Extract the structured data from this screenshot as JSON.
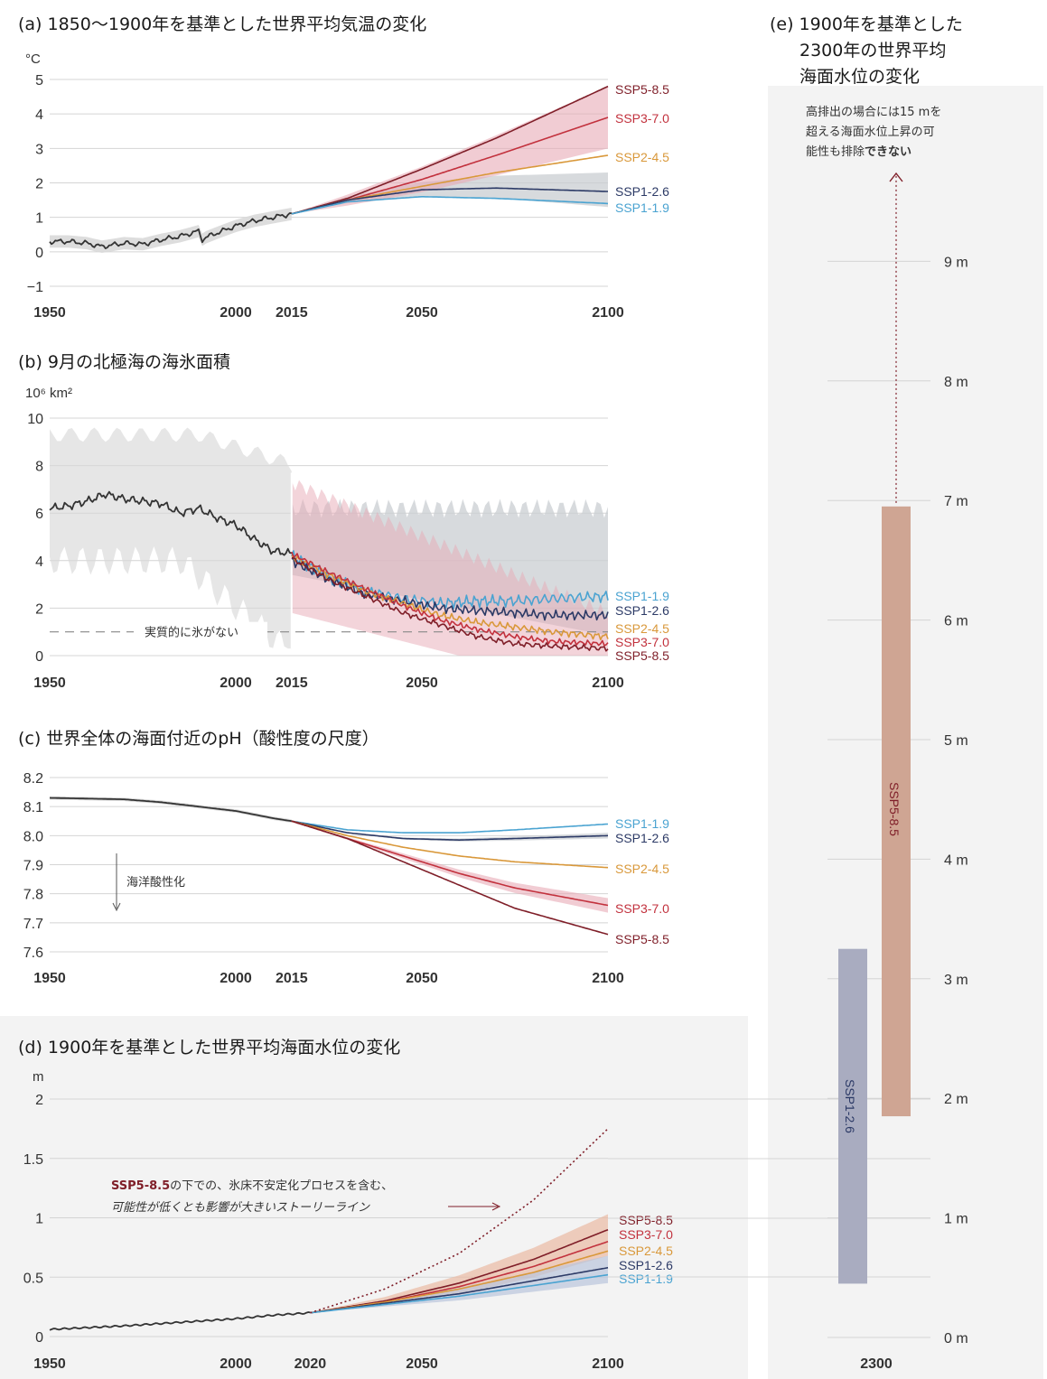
{
  "colors": {
    "hist": "#333333",
    "ssp119": "#4aa3d1",
    "ssp126": "#2c3a66",
    "ssp245": "#d9983a",
    "ssp370": "#c2313d",
    "ssp585": "#7f1e28",
    "band_red": "#e8aab5",
    "band_gray": "#c9cdd2",
    "hist_band": "#d9d9d9",
    "panel_bg": "#f3f3f3",
    "bar585": "#cfa593",
    "bar126": "#a9acc0"
  },
  "chart_data": [
    {
      "id": "a",
      "type": "line",
      "title": "(a) 1850〜1900年を基準とした世界平均気温の変化",
      "ylabel": "°C",
      "ylim": [
        -1,
        5
      ],
      "yticks": [
        "−1",
        "0",
        "1",
        "2",
        "3",
        "4",
        "5"
      ],
      "xticks": [
        "1950",
        "2000",
        "2015",
        "2050",
        "2100"
      ],
      "series": [
        {
          "name": "Historical",
          "x": [
            1950,
            1955,
            1960,
            1964,
            1970,
            1975,
            1980,
            1985,
            1990,
            1991,
            1992,
            1995,
            2000,
            2005,
            2010,
            2015
          ],
          "y": [
            0.3,
            0.3,
            0.25,
            0.15,
            0.25,
            0.22,
            0.35,
            0.45,
            0.6,
            0.35,
            0.42,
            0.55,
            0.75,
            0.9,
            1.0,
            1.1
          ]
        },
        {
          "name": "SSP5-8.5",
          "x": [
            2015,
            2030,
            2050,
            2070,
            2100
          ],
          "y": [
            1.1,
            1.55,
            2.4,
            3.3,
            4.8
          ]
        },
        {
          "name": "SSP3-7.0",
          "x": [
            2015,
            2030,
            2050,
            2070,
            2100
          ],
          "y": [
            1.1,
            1.5,
            2.1,
            2.8,
            3.9
          ]
        },
        {
          "name": "SSP2-4.5",
          "x": [
            2015,
            2030,
            2050,
            2070,
            2100
          ],
          "y": [
            1.1,
            1.5,
            1.9,
            2.3,
            2.8
          ]
        },
        {
          "name": "SSP1-2.6",
          "x": [
            2015,
            2030,
            2050,
            2070,
            2100
          ],
          "y": [
            1.1,
            1.5,
            1.8,
            1.85,
            1.75
          ]
        },
        {
          "name": "SSP1-1.9",
          "x": [
            2015,
            2030,
            2050,
            2070,
            2100
          ],
          "y": [
            1.1,
            1.45,
            1.6,
            1.55,
            1.4
          ]
        }
      ]
    },
    {
      "id": "b",
      "type": "line",
      "title": "(b) 9月の北極海の海氷面積",
      "ylabel": "10⁶ km²",
      "ylim": [
        0,
        10
      ],
      "yticks": [
        "0",
        "2",
        "4",
        "6",
        "8",
        "10"
      ],
      "xticks": [
        "1950",
        "2000",
        "2015",
        "2050",
        "2100"
      ],
      "annotation": "実質的に氷がない",
      "threshold": 1,
      "series": [
        {
          "name": "Historical",
          "x": [
            1950,
            1955,
            1960,
            1965,
            1970,
            1975,
            1980,
            1985,
            1990,
            1995,
            2000,
            2005,
            2010,
            2015
          ],
          "y": [
            6.2,
            6.3,
            6.5,
            6.8,
            6.6,
            6.5,
            6.4,
            6.0,
            6.2,
            5.8,
            5.5,
            4.9,
            4.4,
            4.3
          ]
        },
        {
          "name": "SSP1-1.9",
          "x": [
            2015,
            2025,
            2035,
            2045,
            2055,
            2065,
            2075,
            2085,
            2100
          ],
          "y": [
            4.2,
            3.3,
            2.7,
            2.4,
            2.2,
            2.3,
            2.3,
            2.4,
            2.5
          ]
        },
        {
          "name": "SSP1-2.6",
          "x": [
            2015,
            2025,
            2035,
            2045,
            2055,
            2065,
            2075,
            2085,
            2100
          ],
          "y": [
            4.0,
            3.2,
            2.6,
            2.3,
            2.0,
            1.9,
            1.8,
            1.7,
            1.7
          ]
        },
        {
          "name": "SSP2-4.5",
          "x": [
            2015,
            2025,
            2035,
            2045,
            2055,
            2065,
            2075,
            2085,
            2100
          ],
          "y": [
            4.2,
            3.4,
            2.7,
            2.2,
            1.7,
            1.4,
            1.2,
            1.0,
            0.8
          ]
        },
        {
          "name": "SSP3-7.0",
          "x": [
            2015,
            2025,
            2035,
            2045,
            2055,
            2065,
            2075,
            2085,
            2100
          ],
          "y": [
            4.3,
            3.5,
            2.8,
            2.1,
            1.5,
            1.1,
            0.8,
            0.6,
            0.5
          ]
        },
        {
          "name": "SSP5-8.5",
          "x": [
            2015,
            2025,
            2035,
            2045,
            2055,
            2065,
            2075,
            2085,
            2100
          ],
          "y": [
            4.1,
            3.2,
            2.5,
            1.8,
            1.3,
            0.8,
            0.5,
            0.4,
            0.3
          ]
        }
      ]
    },
    {
      "id": "c",
      "type": "line",
      "title": "(c) 世界全体の海面付近のpH（酸性度の尺度）",
      "ylim": [
        7.6,
        8.2
      ],
      "yticks": [
        "7.6",
        "7.7",
        "7.8",
        "7.9",
        "8.0",
        "8.1",
        "8.2"
      ],
      "xticks": [
        "1950",
        "2000",
        "2015",
        "2050",
        "2100"
      ],
      "annotation": "海洋酸性化",
      "series": [
        {
          "name": "Historical",
          "x": [
            1950,
            1970,
            1980,
            1990,
            2000,
            2010,
            2015
          ],
          "y": [
            8.13,
            8.125,
            8.115,
            8.1,
            8.085,
            8.06,
            8.05
          ]
        },
        {
          "name": "SSP1-1.9",
          "x": [
            2015,
            2030,
            2045,
            2060,
            2075,
            2100
          ],
          "y": [
            8.05,
            8.02,
            8.01,
            8.01,
            8.02,
            8.04
          ]
        },
        {
          "name": "SSP1-2.6",
          "x": [
            2015,
            2030,
            2045,
            2060,
            2075,
            2100
          ],
          "y": [
            8.05,
            8.01,
            7.99,
            7.985,
            7.99,
            8.0
          ]
        },
        {
          "name": "SSP2-4.5",
          "x": [
            2015,
            2030,
            2045,
            2060,
            2075,
            2100
          ],
          "y": [
            8.05,
            8.0,
            7.96,
            7.93,
            7.91,
            7.89
          ]
        },
        {
          "name": "SSP3-7.0",
          "x": [
            2015,
            2030,
            2045,
            2060,
            2075,
            2100
          ],
          "y": [
            8.05,
            7.99,
            7.93,
            7.87,
            7.82,
            7.76
          ]
        },
        {
          "name": "SSP5-8.5",
          "x": [
            2015,
            2030,
            2045,
            2060,
            2075,
            2100
          ],
          "y": [
            8.05,
            7.99,
            7.91,
            7.83,
            7.75,
            7.66
          ]
        }
      ]
    },
    {
      "id": "d",
      "type": "line",
      "title": "(d) 1900年を基準とした世界平均海面水位の変化",
      "ylabel": "m",
      "ylim": [
        0,
        2
      ],
      "yticks": [
        "0",
        "0.5",
        "1",
        "1.5",
        "2"
      ],
      "xticks": [
        "1950",
        "2000",
        "2020",
        "2050",
        "2100"
      ],
      "annotation_bold": "SSP5-8.5",
      "annotation_rest": "の下での、氷床不安定化プロセスを含む、",
      "annotation_line2": "可能性が低くとも影響が大きいストーリーライン",
      "series": [
        {
          "name": "Historical",
          "x": [
            1950,
            1960,
            1970,
            1980,
            1990,
            2000,
            2010,
            2020
          ],
          "y": [
            0.06,
            0.075,
            0.09,
            0.11,
            0.13,
            0.15,
            0.18,
            0.2
          ]
        },
        {
          "name": "SSP5-8.5",
          "x": [
            2020,
            2040,
            2060,
            2080,
            2100
          ],
          "y": [
            0.2,
            0.3,
            0.45,
            0.65,
            0.9
          ]
        },
        {
          "name": "SSP3-7.0",
          "x": [
            2020,
            2040,
            2060,
            2080,
            2100
          ],
          "y": [
            0.2,
            0.29,
            0.42,
            0.59,
            0.8
          ]
        },
        {
          "name": "SSP2-4.5",
          "x": [
            2020,
            2040,
            2060,
            2080,
            2100
          ],
          "y": [
            0.2,
            0.29,
            0.4,
            0.54,
            0.72
          ]
        },
        {
          "name": "SSP1-2.6",
          "x": [
            2020,
            2040,
            2060,
            2080,
            2100
          ],
          "y": [
            0.2,
            0.28,
            0.36,
            0.47,
            0.58
          ]
        },
        {
          "name": "SSP1-1.9",
          "x": [
            2020,
            2040,
            2060,
            2080,
            2100
          ],
          "y": [
            0.2,
            0.27,
            0.34,
            0.43,
            0.52
          ]
        },
        {
          "name": "Low-likelihood storyline",
          "x": [
            2020,
            2040,
            2060,
            2080,
            2100
          ],
          "y": [
            0.2,
            0.4,
            0.7,
            1.15,
            1.75
          ]
        }
      ]
    },
    {
      "id": "e",
      "type": "bar",
      "title_lines": [
        "(e) 1900年を基準とした",
        "2300年の世界平均",
        "海面水位の変化"
      ],
      "yticks": [
        "0 m",
        "1 m",
        "2 m",
        "3 m",
        "4 m",
        "5 m",
        "6 m",
        "7 m",
        "8 m",
        "9 m"
      ],
      "ylim": [
        0,
        10
      ],
      "xtick": "2300",
      "note_lines": [
        "高排出の場合には15 mを",
        "超える海面水位上昇の可",
        "能性も排除できない"
      ],
      "note_bold": "できない",
      "bars": [
        {
          "name": "SSP1-2.6",
          "low": 0.45,
          "high": 3.25
        },
        {
          "name": "SSP5-8.5",
          "low": 1.85,
          "high": 6.95
        }
      ]
    }
  ]
}
